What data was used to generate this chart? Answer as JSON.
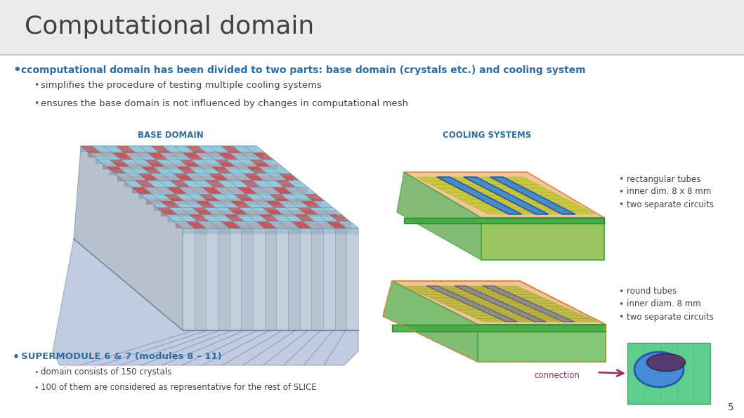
{
  "title": "Computational domain",
  "bg_color": "#ececec",
  "title_color": "#404040",
  "title_fontsize": 26,
  "divider_color": "#bbbbbb",
  "bullet_color": "#2e6da4",
  "dark_text": "#444444",
  "main_bullet": "ccomputational domain has been divided to two parts: base domain (crystals etc.) and cooling system",
  "sub_bullet1": "simplifies the procedure of testing multiple cooling systems",
  "sub_bullet2": "ensures the base domain is not influenced by changes in computational mesh",
  "base_domain_label": "BASE DOMAIN",
  "cooling_systems_label": "COOLING SYSTEMS",
  "rect_bullets": [
    "rectangular tubes",
    "inner dim. 8 x 8 mm",
    "two separate circuits"
  ],
  "round_bullets": [
    "round tubes",
    "inner diam. 8 mm",
    "two separate circuits"
  ],
  "connection_label": "connection",
  "connection_color": "#993366",
  "bottom_bullet": "SUPERMODULE 6 & 7 (modules 8 – 11)",
  "bottom_sub1": "domain consists of 150 crystals",
  "bottom_sub2": "100 of them are considered as representative for the rest of SLICE",
  "page_number": "5",
  "label_color": "#2e6da4",
  "bullet_fontsize": 10,
  "sub_bullet_fontsize": 9.5
}
